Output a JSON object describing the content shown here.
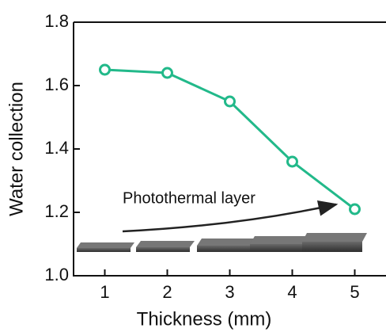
{
  "chart_data": {
    "type": "line",
    "x_label": "Thickness (mm)",
    "y_label": "Water collection",
    "annotation": "Photothermal layer",
    "x": [
      1,
      2,
      3,
      4,
      5
    ],
    "series": [
      {
        "color": "#22b98a",
        "values": [
          1.65,
          1.64,
          1.55,
          1.36,
          1.21
        ]
      }
    ],
    "xlim": [
      0.5,
      5.5
    ],
    "xticks": [
      1,
      2,
      3,
      4,
      5
    ],
    "ylim": [
      1.0,
      1.8
    ],
    "yticks": [
      {
        "value": 1.0,
        "label": "1.0"
      },
      1.2,
      1.4,
      1.6,
      1.8
    ]
  }
}
